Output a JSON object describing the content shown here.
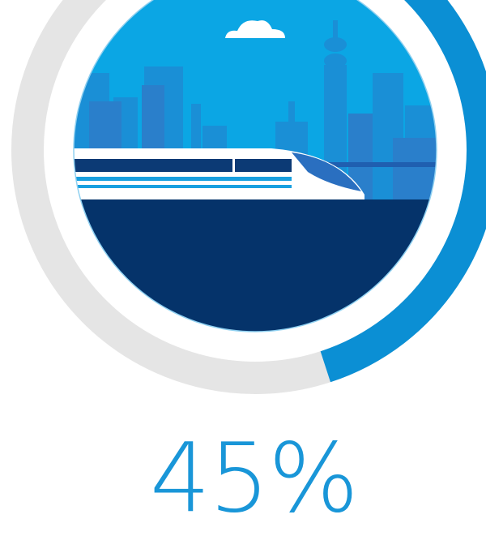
{
  "chart_data": {
    "type": "donut",
    "values": [
      45
    ],
    "value_labels": [
      "45%"
    ],
    "color": "#0b8fd4",
    "track_color": "#e5e5e5"
  }
}
